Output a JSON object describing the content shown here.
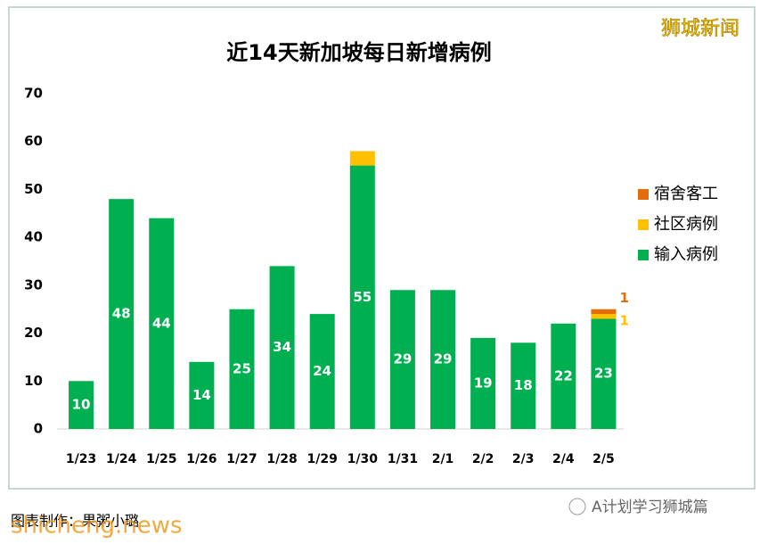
{
  "chart_data": {
    "type": "stacked_bar",
    "title": "近14天新加坡每日新增病例",
    "categories": [
      "1/23",
      "1/24",
      "1/25",
      "1/26",
      "1/27",
      "1/28",
      "1/29",
      "1/30",
      "1/31",
      "2/1",
      "2/2",
      "2/3",
      "2/4",
      "2/5"
    ],
    "series": [
      {
        "name": "输入病例",
        "color": "#00b050",
        "values": [
          10,
          48,
          44,
          14,
          25,
          34,
          24,
          55,
          29,
          29,
          19,
          18,
          22,
          23
        ]
      },
      {
        "name": "社区病例",
        "color": "#ffc000",
        "values": [
          0,
          0,
          0,
          0,
          0,
          0,
          0,
          3,
          0,
          0,
          0,
          0,
          0,
          1
        ],
        "value_labels": [
          null,
          null,
          null,
          null,
          null,
          null,
          null,
          null,
          null,
          null,
          null,
          null,
          null,
          "1"
        ]
      },
      {
        "name": "宿舍客工",
        "color": "#e46c0a",
        "values": [
          0,
          0,
          0,
          0,
          0,
          0,
          0,
          0,
          0,
          0,
          0,
          0,
          0,
          1
        ],
        "value_labels": [
          null,
          null,
          null,
          null,
          null,
          null,
          null,
          null,
          null,
          null,
          null,
          null,
          null,
          "1"
        ]
      }
    ],
    "ylim": [
      0,
      70
    ],
    "yticks": [
      0,
      10,
      20,
      30,
      40,
      50,
      60,
      70
    ],
    "grid": false,
    "legend": "right"
  },
  "annotations": {
    "watermark": "狮城新闻",
    "credit": "图表制作：果粥小璐",
    "account": "A计划学习狮城篇",
    "site": "shicheng.news"
  }
}
